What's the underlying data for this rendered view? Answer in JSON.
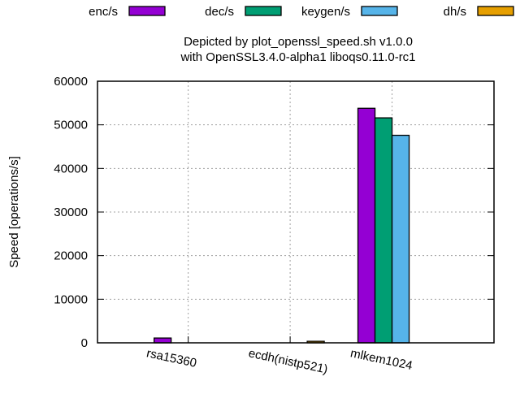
{
  "chart_data": {
    "type": "bar",
    "title": "Depicted by plot_openssl_speed.sh v1.0.0",
    "subtitle": "with OpenSSL3.4.0-alpha1 liboqs0.11.0-rc1",
    "xlabel": "",
    "ylabel": "Speed [operations/s]",
    "ylim": [
      0,
      60000
    ],
    "yticks": [
      "0",
      "10000",
      "20000",
      "30000",
      "40000",
      "50000",
      "60000"
    ],
    "ytick_values": [
      0,
      10000,
      20000,
      30000,
      40000,
      50000,
      60000
    ],
    "grid": true,
    "legend_position": "top",
    "categories": [
      "rsa15360",
      "ecdh(nistp521)",
      "mlkem1024"
    ],
    "series": [
      {
        "name": "enc/s",
        "color": "#9400d3",
        "values": [
          1100,
          0,
          53800
        ]
      },
      {
        "name": "dec/s",
        "color": "#009e73",
        "values": [
          0,
          0,
          51600
        ]
      },
      {
        "name": "keygen/s",
        "color": "#56b4e9",
        "values": [
          0,
          0,
          47600
        ]
      },
      {
        "name": "dh/s",
        "color": "#e69f00",
        "values": [
          0,
          350,
          0
        ]
      }
    ]
  }
}
